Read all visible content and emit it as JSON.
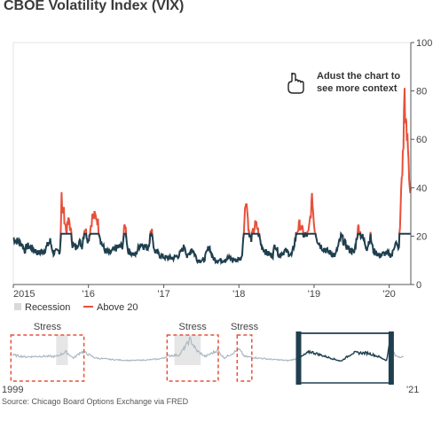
{
  "chart_data": {
    "type": "line",
    "title": "CBOE Volatility Index (VIX)",
    "y_axis": {
      "range": [
        0,
        100
      ],
      "ticks": [
        0,
        20,
        40,
        60,
        80,
        100
      ],
      "position": "right"
    },
    "x_axis": {
      "range": [
        "2015-01-01",
        "2020-04-15"
      ],
      "tick_labels": [
        "2015",
        "'16",
        "'17",
        "'18",
        "'19",
        "'20"
      ]
    },
    "threshold": 20,
    "series": [
      {
        "name": "Above 20",
        "color": "#e8503a"
      },
      {
        "name": "VIX",
        "color": "#1f3f4f"
      }
    ],
    "points": [
      [
        "2015-01-01",
        19
      ],
      [
        "2015-01-20",
        18
      ],
      [
        "2015-02-10",
        17
      ],
      [
        "2015-02-25",
        14
      ],
      [
        "2015-03-10",
        16
      ],
      [
        "2015-04-01",
        15
      ],
      [
        "2015-05-01",
        13
      ],
      [
        "2015-06-01",
        14
      ],
      [
        "2015-06-29",
        18
      ],
      [
        "2015-07-15",
        13
      ],
      [
        "2015-08-17",
        14
      ],
      [
        "2015-08-24",
        41
      ],
      [
        "2015-08-27",
        27
      ],
      [
        "2015-09-01",
        31
      ],
      [
        "2015-09-15",
        22
      ],
      [
        "2015-09-29",
        27
      ],
      [
        "2015-10-15",
        17
      ],
      [
        "2015-11-01",
        15
      ],
      [
        "2015-11-15",
        18
      ],
      [
        "2015-12-01",
        16
      ],
      [
        "2015-12-14",
        24
      ],
      [
        "2015-12-31",
        18
      ],
      [
        "2016-01-20",
        28
      ],
      [
        "2016-02-11",
        28
      ],
      [
        "2016-03-01",
        18
      ],
      [
        "2016-03-20",
        14
      ],
      [
        "2016-04-15",
        13
      ],
      [
        "2016-05-15",
        15
      ],
      [
        "2016-06-15",
        16
      ],
      [
        "2016-06-27",
        26
      ],
      [
        "2016-07-10",
        14
      ],
      [
        "2016-08-15",
        12
      ],
      [
        "2016-09-09",
        17
      ],
      [
        "2016-10-15",
        15
      ],
      [
        "2016-11-04",
        23
      ],
      [
        "2016-11-15",
        14
      ],
      [
        "2016-12-15",
        12
      ],
      [
        "2017-01-15",
        11
      ],
      [
        "2017-02-15",
        11
      ],
      [
        "2017-03-15",
        12
      ],
      [
        "2017-04-13",
        16
      ],
      [
        "2017-04-25",
        11
      ],
      [
        "2017-05-17",
        15
      ],
      [
        "2017-06-15",
        10
      ],
      [
        "2017-07-15",
        10
      ],
      [
        "2017-08-10",
        16
      ],
      [
        "2017-08-25",
        11
      ],
      [
        "2017-09-15",
        10
      ],
      [
        "2017-10-15",
        10
      ],
      [
        "2017-11-15",
        11
      ],
      [
        "2017-12-15",
        10
      ],
      [
        "2018-01-15",
        11
      ],
      [
        "2018-02-05",
        37
      ],
      [
        "2018-02-08",
        33
      ],
      [
        "2018-02-20",
        20
      ],
      [
        "2018-03-01",
        19
      ],
      [
        "2018-03-23",
        25
      ],
      [
        "2018-04-02",
        23
      ],
      [
        "2018-04-20",
        16
      ],
      [
        "2018-05-15",
        13
      ],
      [
        "2018-06-15",
        12
      ],
      [
        "2018-06-25",
        17
      ],
      [
        "2018-07-15",
        12
      ],
      [
        "2018-08-15",
        14
      ],
      [
        "2018-09-15",
        12
      ],
      [
        "2018-10-10",
        22
      ],
      [
        "2018-10-24",
        25
      ],
      [
        "2018-11-15",
        20
      ],
      [
        "2018-12-05",
        21
      ],
      [
        "2018-12-24",
        36
      ],
      [
        "2018-12-31",
        25
      ],
      [
        "2019-01-15",
        19
      ],
      [
        "2019-02-01",
        16
      ],
      [
        "2019-03-01",
        14
      ],
      [
        "2019-04-15",
        12
      ],
      [
        "2019-05-13",
        20
      ],
      [
        "2019-05-30",
        17
      ],
      [
        "2019-06-15",
        15
      ],
      [
        "2019-07-15",
        13
      ],
      [
        "2019-08-05",
        24
      ],
      [
        "2019-08-15",
        21
      ],
      [
        "2019-09-01",
        18
      ],
      [
        "2019-09-15",
        15
      ],
      [
        "2019-10-02",
        20
      ],
      [
        "2019-10-15",
        14
      ],
      [
        "2019-11-15",
        12
      ],
      [
        "2019-12-15",
        13
      ],
      [
        "2020-01-15",
        12
      ],
      [
        "2020-01-31",
        18
      ],
      [
        "2020-02-15",
        14
      ],
      [
        "2020-02-24",
        25
      ],
      [
        "2020-02-28",
        40
      ],
      [
        "2020-03-09",
        54
      ],
      [
        "2020-03-16",
        82
      ],
      [
        "2020-03-20",
        66
      ],
      [
        "2020-03-26",
        61
      ],
      [
        "2020-04-01",
        57
      ],
      [
        "2020-04-09",
        41
      ],
      [
        "2020-04-15",
        40
      ]
    ],
    "annotation": {
      "line1": "Adust the chart to",
      "line2": "see more context",
      "icon": "pointing-hand-icon"
    },
    "legend": {
      "position": "bottom-left",
      "items": [
        {
          "label": "Recession",
          "color": "#d9d9d9"
        },
        {
          "label": "Above 20",
          "color": "#e8503a"
        }
      ]
    },
    "navigator": {
      "start_label": "1999",
      "end_label": "'21",
      "stress_label": "Stress",
      "stress_periods": [
        [
          "1998-08-01",
          "2002-10-01"
        ],
        [
          "2007-07-01",
          "2010-06-01"
        ],
        [
          "2011-07-01",
          "2012-05-01"
        ]
      ],
      "recessions": [
        [
          "2001-03-01",
          "2001-11-01"
        ],
        [
          "2007-12-01",
          "2009-06-01"
        ]
      ],
      "selected_range": [
        "2015-01-01",
        "2020-04-15"
      ],
      "range": [
        "1998-09-01",
        "2021-01-01"
      ]
    }
  },
  "source": "Source: Chicago Board Options Exchange via FRED"
}
